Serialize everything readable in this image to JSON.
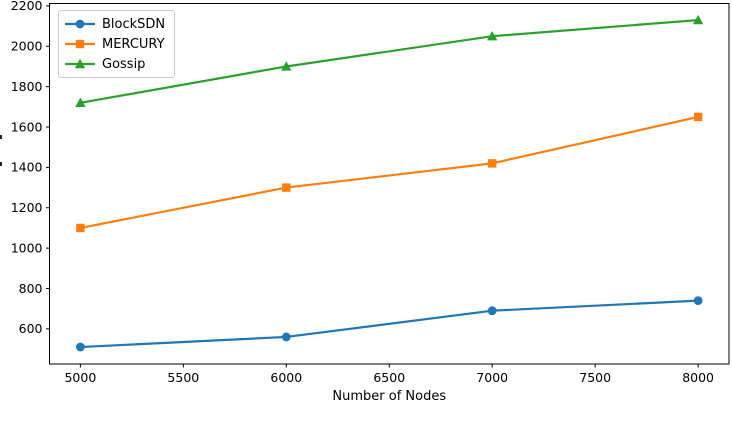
{
  "figure": {
    "title": "",
    "x_axis_label": "Number of Nodes",
    "y_axis_label_visible": false,
    "legend_entries": [
      "BlockSDN",
      "MERCURY",
      "Gossip"
    ]
  },
  "chart_data": {
    "type": "line",
    "title": "",
    "xlabel": "Number of Nodes",
    "ylabel": "",
    "x": [
      5000,
      6000,
      7000,
      8000
    ],
    "series": [
      {
        "name": "BlockSDN",
        "values": [
          510,
          560,
          690,
          740
        ],
        "color": "#1f77b4",
        "marker": "circle"
      },
      {
        "name": "MERCURY",
        "values": [
          1100,
          1300,
          1420,
          1650
        ],
        "color": "#ff7f0e",
        "marker": "square"
      },
      {
        "name": "Gossip",
        "values": [
          1720,
          1900,
          2050,
          2130
        ],
        "color": "#2ca02c",
        "marker": "triangle-up"
      }
    ],
    "xticks": [
      5000,
      5500,
      6000,
      6500,
      7000,
      7500,
      8000
    ],
    "yticks": [
      600,
      800,
      1000,
      1200,
      1400,
      1600,
      1800,
      2000,
      2200
    ],
    "xlim": [
      4850,
      8150
    ],
    "ylim": [
      426,
      2212
    ],
    "grid": false,
    "legend_position": "upper left",
    "axis_color": "#000000",
    "line_width": 2.2
  }
}
